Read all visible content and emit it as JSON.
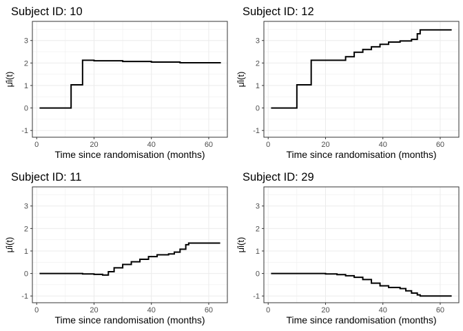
{
  "chart_data": [
    {
      "type": "line",
      "title": "Subject ID: 10",
      "xlabel": "Time since randomisation (months)",
      "ylabel": "μ̂i(t)",
      "xlim": [
        -1.5,
        66.5
      ],
      "ylim": [
        -1.3,
        3.85
      ],
      "xticks": [
        0,
        20,
        40,
        60
      ],
      "yticks": [
        -1,
        0,
        1,
        2,
        3
      ],
      "grid": true,
      "step": true,
      "x": [
        1,
        12,
        12,
        16,
        16,
        20,
        30,
        40,
        50,
        64
      ],
      "y": [
        0,
        0,
        1.03,
        1.03,
        2.12,
        2.1,
        2.07,
        2.04,
        2.01,
        1.98
      ]
    },
    {
      "type": "line",
      "title": "Subject ID: 12",
      "xlabel": "Time since randomisation (months)",
      "ylabel": "μ̂i(t)",
      "xlim": [
        -1.5,
        66.5
      ],
      "ylim": [
        -1.3,
        3.85
      ],
      "xticks": [
        0,
        20,
        40,
        60
      ],
      "yticks": [
        -1,
        0,
        1,
        2,
        3
      ],
      "grid": true,
      "step": true,
      "x": [
        1,
        10,
        10,
        15,
        15,
        24,
        27,
        30,
        33,
        36,
        39,
        42,
        46,
        50,
        52,
        53,
        54,
        64
      ],
      "y": [
        0,
        0,
        1.03,
        1.03,
        2.12,
        2.12,
        2.28,
        2.48,
        2.6,
        2.72,
        2.83,
        2.93,
        2.98,
        3.05,
        3.3,
        3.47,
        3.47,
        3.47
      ]
    },
    {
      "type": "line",
      "title": "Subject ID: 11",
      "xlabel": "Time since randomisation (months)",
      "ylabel": "μ̂i(t)",
      "xlim": [
        -1.5,
        66.5
      ],
      "ylim": [
        -1.3,
        3.85
      ],
      "xticks": [
        0,
        20,
        40,
        60
      ],
      "yticks": [
        -1,
        0,
        1,
        2,
        3
      ],
      "grid": true,
      "step": true,
      "x": [
        1,
        12,
        16,
        20,
        23,
        25,
        27,
        30,
        33,
        36,
        39,
        42,
        46,
        48,
        50,
        52,
        53,
        64
      ],
      "y": [
        0,
        0,
        -0.02,
        -0.04,
        -0.07,
        0.08,
        0.25,
        0.4,
        0.52,
        0.63,
        0.75,
        0.83,
        0.87,
        0.95,
        1.08,
        1.28,
        1.35,
        1.35
      ]
    },
    {
      "type": "line",
      "title": "Subject ID: 29",
      "xlabel": "Time since randomisation (months)",
      "ylabel": "μ̂i(t)",
      "xlim": [
        -1.5,
        66.5
      ],
      "ylim": [
        -1.3,
        3.85
      ],
      "xticks": [
        0,
        20,
        40,
        60
      ],
      "yticks": [
        -1,
        0,
        1,
        2,
        3
      ],
      "grid": true,
      "step": true,
      "x": [
        1,
        12,
        16,
        20,
        24,
        27,
        30,
        33,
        36,
        39,
        42,
        46,
        48,
        50,
        52,
        53,
        64
      ],
      "y": [
        0,
        0,
        0,
        -0.02,
        -0.05,
        -0.1,
        -0.17,
        -0.27,
        -0.43,
        -0.55,
        -0.62,
        -0.67,
        -0.77,
        -0.87,
        -0.95,
        -1.0,
        -1.0
      ]
    }
  ]
}
